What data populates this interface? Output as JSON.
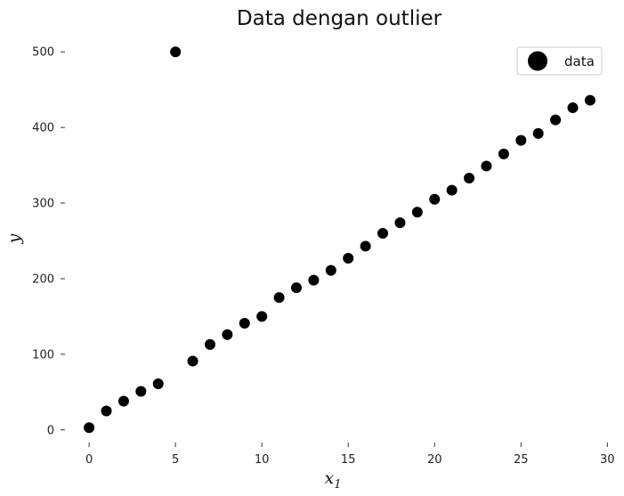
{
  "chart_data": {
    "type": "scatter",
    "title": "Data dengan outlier",
    "xlabel_main": "x",
    "xlabel_sub": "1",
    "ylabel": "y",
    "xlim": [
      -1.5,
      30.5
    ],
    "ylim": [
      -25,
      525
    ],
    "xticks": [
      0,
      5,
      10,
      15,
      20,
      25,
      30
    ],
    "yticks": [
      0,
      100,
      200,
      300,
      400,
      500
    ],
    "grid": false,
    "legend_position": "top-right",
    "marker_color": "#000000",
    "series": [
      {
        "name": "data",
        "x": [
          0,
          1,
          2,
          3,
          4,
          5,
          6,
          7,
          8,
          9,
          10,
          11,
          12,
          13,
          14,
          15,
          16,
          17,
          18,
          19,
          20,
          21,
          22,
          23,
          24,
          25,
          26,
          27,
          28,
          29
        ],
        "y": [
          3,
          25,
          38,
          51,
          61,
          500,
          91,
          113,
          126,
          141,
          150,
          175,
          188,
          198,
          211,
          227,
          243,
          260,
          274,
          288,
          305,
          317,
          333,
          349,
          365,
          383,
          392,
          410,
          426,
          436
        ]
      }
    ]
  }
}
